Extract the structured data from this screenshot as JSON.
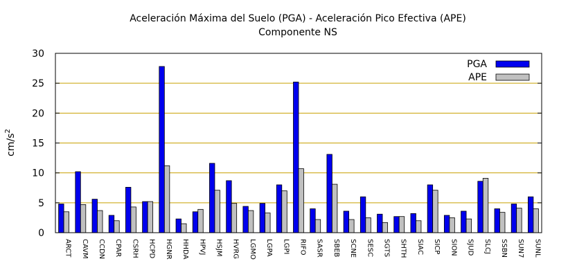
{
  "chart_data": {
    "type": "bar",
    "title": "Aceleración Máxima del Suelo (PGA) -  Aceleración Pico Efectiva (APE)",
    "subtitle": "Componente NS",
    "xlabel": "",
    "ylabel": "cm/s",
    "ylabel_superscript": "2",
    "ylim": [
      0,
      30
    ],
    "yticks": [
      0,
      5,
      10,
      15,
      20,
      25,
      30
    ],
    "grid": true,
    "legend_position": "top-right",
    "categories": [
      "ARCT",
      "CAVM",
      "CCDN",
      "CPAR",
      "CSRH",
      "HCPD",
      "HGNR",
      "HHDA",
      "HPVJ",
      "HSJM",
      "HVRG",
      "LGMO",
      "LGPA",
      "LGPI",
      "RIFO",
      "SASR",
      "SBEB",
      "SCNE",
      "SESC",
      "SGTS",
      "SHTH",
      "SIAC",
      "SICP",
      "SION",
      "SJUD",
      "SLCJ",
      "SSBN",
      "SUN7",
      "SUNL"
    ],
    "series": [
      {
        "name": "PGA",
        "color": "#0000ee",
        "values": [
          4.8,
          10.2,
          5.6,
          2.9,
          7.6,
          5.2,
          27.8,
          2.3,
          3.5,
          11.6,
          8.7,
          4.4,
          4.9,
          8.0,
          25.2,
          4.0,
          13.1,
          3.6,
          6.0,
          3.1,
          2.7,
          3.2,
          8.0,
          2.9,
          3.6,
          8.6,
          4.0,
          4.8,
          6.0
        ]
      },
      {
        "name": "APE",
        "color": "#c0c0c0",
        "values": [
          3.5,
          4.7,
          3.7,
          2.0,
          4.3,
          5.2,
          11.2,
          1.5,
          3.9,
          7.1,
          4.9,
          3.7,
          3.3,
          7.0,
          10.7,
          2.2,
          8.1,
          2.2,
          2.5,
          1.7,
          2.7,
          2.0,
          7.1,
          2.5,
          2.3,
          9.1,
          3.4,
          4.1,
          4.0
        ]
      }
    ]
  }
}
